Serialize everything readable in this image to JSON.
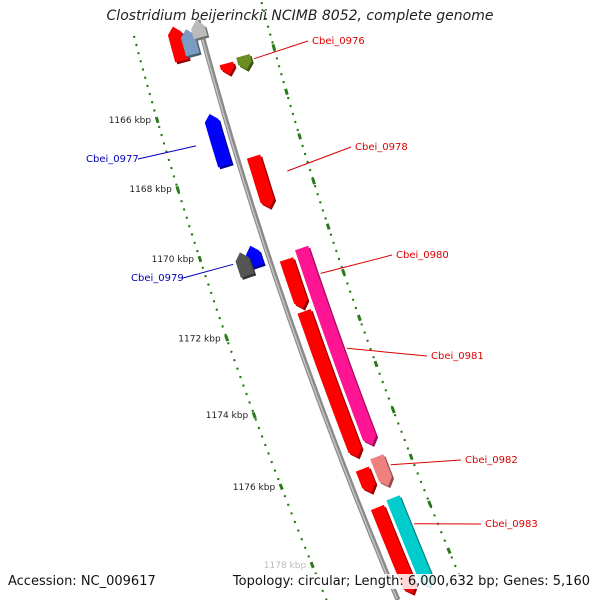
{
  "title": "Clostridium beijerinckii NCIMB 8052, complete genome",
  "footer": {
    "accession": "Accession: NC_009617",
    "summary": "Topology: circular; Length: 6,000,632 bp; Genes: 5,160"
  },
  "scale": {
    "ticks": [
      "1166 kbp",
      "1168 kbp",
      "1170 kbp",
      "1172 kbp",
      "1174 kbp",
      "1176 kbp",
      "1178 kbp"
    ]
  },
  "colors": {
    "backbone": "#8a8a8a",
    "forward_label": "#dd0000",
    "reverse_label": "#0000bb",
    "tick": "#2a7a1a"
  },
  "genes": [
    {
      "name": "",
      "strand": "reverse",
      "color": "#ff0000",
      "lane": 2,
      "start": 0.0,
      "end": 0.06
    },
    {
      "name": "",
      "strand": "reverse",
      "color": "#7a9cc2",
      "lane": 1,
      "start": 0.01,
      "end": 0.055
    },
    {
      "name": "",
      "strand": "reverse",
      "color": "#bbbbbb",
      "lane": 0,
      "start": 0.0,
      "end": 0.03
    },
    {
      "name": "Cbei_0976",
      "strand": "forward",
      "color": "#ff0000",
      "lane": 0,
      "start": 0.085,
      "end": 0.105
    },
    {
      "name": "",
      "strand": "forward",
      "color": "#6b8e23",
      "lane": 1,
      "start": 0.08,
      "end": 0.105
    },
    {
      "name": "Cbei_0977",
      "strand": "reverse",
      "color": "#0000ff",
      "lane": 1,
      "start": 0.16,
      "end": 0.25
    },
    {
      "name": "Cbei_0978",
      "strand": "forward",
      "color": "#ff0000",
      "lane": 0,
      "start": 0.25,
      "end": 0.34
    },
    {
      "name": "Cbei_0979",
      "strand": "reverse",
      "color": "#0000ff",
      "lane": 1,
      "start": 0.39,
      "end": 0.425
    },
    {
      "name": "",
      "strand": "reverse",
      "color": "#555555",
      "lane": 2,
      "start": 0.395,
      "end": 0.435
    },
    {
      "name": "",
      "strand": "forward",
      "color": "#ff0000",
      "lane": 0,
      "start": 0.43,
      "end": 0.515
    },
    {
      "name": "Cbei_0980",
      "strand": "forward",
      "color": "#ff1493",
      "lane": 1,
      "start": 0.42,
      "end": 0.76
    },
    {
      "name": "Cbei_0981",
      "strand": "forward",
      "color": "#ff0000",
      "lane": 0,
      "start": 0.52,
      "end": 0.77
    },
    {
      "name": "",
      "strand": "forward",
      "color": "#ff0000",
      "lane": 0,
      "start": 0.79,
      "end": 0.83
    },
    {
      "name": "Cbei_0982",
      "strand": "forward",
      "color": "#f08080",
      "lane": 1,
      "start": 0.78,
      "end": 0.83
    },
    {
      "name": "",
      "strand": "forward",
      "color": "#ff0000",
      "lane": 0,
      "start": 0.855,
      "end": 1.0
    },
    {
      "name": "Cbei_0983",
      "strand": "forward",
      "color": "#00cccc",
      "lane": 1,
      "start": 0.85,
      "end": 1.0
    }
  ],
  "labels": [
    {
      "gene": "Cbei_0976",
      "strand": "forward"
    },
    {
      "gene": "Cbei_0977",
      "strand": "reverse"
    },
    {
      "gene": "Cbei_0978",
      "strand": "forward"
    },
    {
      "gene": "Cbei_0979",
      "strand": "reverse"
    },
    {
      "gene": "Cbei_0980",
      "strand": "forward"
    },
    {
      "gene": "Cbei_0981",
      "strand": "forward"
    },
    {
      "gene": "Cbei_0982",
      "strand": "forward"
    },
    {
      "gene": "Cbei_0983",
      "strand": "forward"
    }
  ]
}
